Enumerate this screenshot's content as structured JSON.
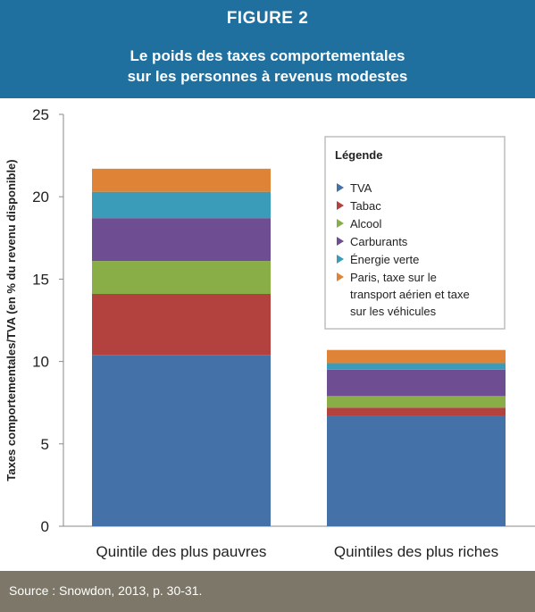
{
  "header": {
    "figure_label": "FIGURE 2",
    "title_line1": "Le poids des taxes comportementales",
    "title_line2": "sur les personnes à revenus modestes"
  },
  "footer": {
    "source": "Source : Snowdon, 2013, p. 30-31."
  },
  "colors": {
    "header_bg": "#1f6f9f",
    "footer_bg": "#7c7768",
    "TVA": "#4472a8",
    "Tabac": "#b3413e",
    "Alcool": "#8aae47",
    "Carburants": "#6e4d93",
    "Énergie verte": "#3a9cb8",
    "Paris": "#df8336"
  },
  "chart_data": {
    "type": "bar",
    "stacked": true,
    "categories": [
      "Quintile des plus pauvres",
      "Quintiles des plus riches"
    ],
    "series": [
      {
        "name": "TVA",
        "values": [
          10.4,
          6.7
        ]
      },
      {
        "name": "Tabac",
        "values": [
          3.7,
          0.5
        ]
      },
      {
        "name": "Alcool",
        "values": [
          2.0,
          0.7
        ]
      },
      {
        "name": "Carburants",
        "values": [
          2.6,
          1.6
        ]
      },
      {
        "name": "Énergie verte",
        "values": [
          1.6,
          0.4
        ]
      },
      {
        "name": "Paris, taxe sur le transport aérien et taxe sur les véhicules",
        "values": [
          1.4,
          0.8
        ]
      }
    ],
    "legend_lines": [
      [
        "TVA"
      ],
      [
        "Tabac"
      ],
      [
        "Alcool"
      ],
      [
        "Carburants"
      ],
      [
        "Énergie verte"
      ],
      [
        "Paris, taxe sur le",
        "transport aérien et taxe",
        "sur les véhicules"
      ]
    ],
    "legend_title": "Légende",
    "legend_position": "top-right",
    "ylabel": "Taxes comportementales/TVA (en % du revenu disponible)",
    "xlabel": "",
    "ylim": [
      0,
      25
    ],
    "yticks": [
      "0",
      "5",
      "10",
      "15",
      "20",
      "25"
    ],
    "grid": false
  }
}
